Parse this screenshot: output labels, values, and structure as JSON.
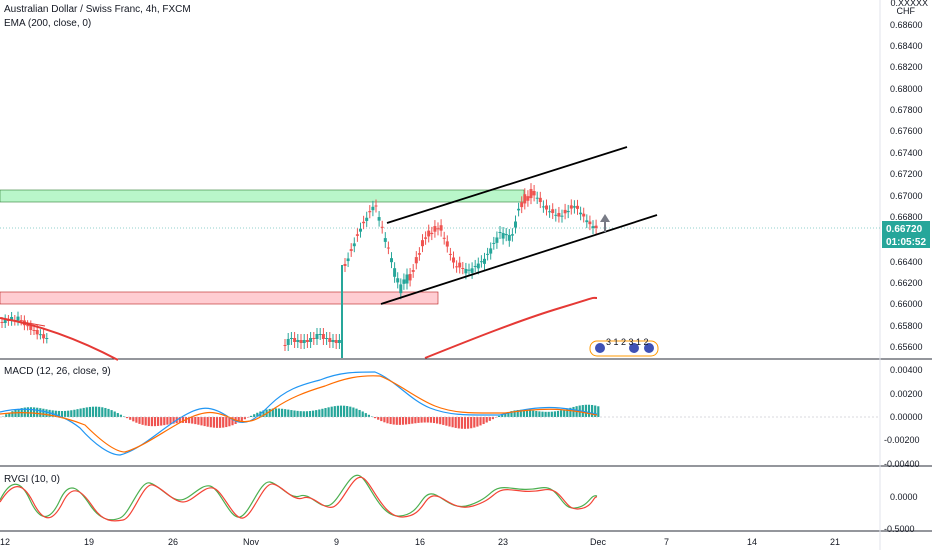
{
  "header": {
    "title": "Australian Dollar / Swiss Franc, 4h, FXCM",
    "ema_label": "EMA (200, close, 0)"
  },
  "price_axis": {
    "currency_line1": "0.XXXXX",
    "currency_line2": "CHF",
    "ticks": [
      "0.68600",
      "0.68400",
      "0.68200",
      "0.68000",
      "0.67800",
      "0.67600",
      "0.67400",
      "0.67200",
      "0.67000",
      "0.66800",
      "0.66400",
      "0.66200",
      "0.66000",
      "0.65800",
      "0.65600"
    ],
    "current_price": "0.66720",
    "countdown": "01:05:52"
  },
  "macd": {
    "label": "MACD (12, 26, close, 9)",
    "ticks": [
      "0.00400",
      "0.00200",
      "0.00000",
      "-0.00200",
      "-0.00400"
    ]
  },
  "rvgi": {
    "label": "RVGI (10, 0)",
    "ticks": [
      "0.0000",
      "-0.5000"
    ]
  },
  "time_axis": {
    "ticks": [
      "12",
      "19",
      "26",
      "Nov",
      "9",
      "16",
      "23",
      "Dec",
      "7",
      "14",
      "21"
    ]
  },
  "events": {
    "badge_text": "3 1 2 3 1 2"
  },
  "colors": {
    "up": "#26a69a",
    "down": "#ef5350",
    "ema": "#e53935",
    "macd_line": "#2196f3",
    "signal_line": "#ff6d00",
    "price_tag": "#2962ff",
    "resistance_zone": "#b9f6ca",
    "support_zone": "#ffcdd2"
  }
}
